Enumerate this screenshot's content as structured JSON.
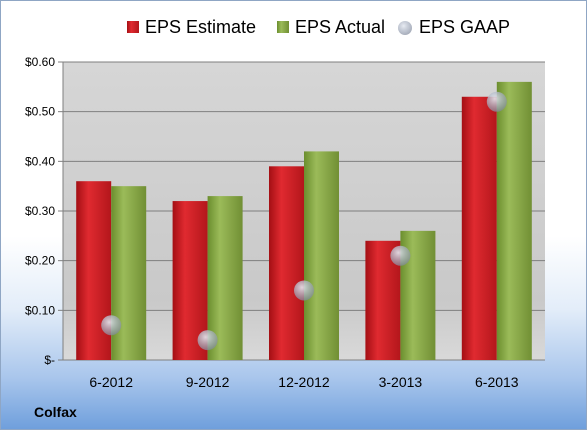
{
  "company": "Colfax",
  "colors": {
    "estimate": "#c8161d",
    "actual": "#7ea13c",
    "gaap": "#b4bccb",
    "plot_background": "#cfcfcf",
    "gridline": "#7f7f7f"
  },
  "chart_data": {
    "type": "bar",
    "categories": [
      "6-2012",
      "9-2012",
      "12-2012",
      "3-2013",
      "6-2013"
    ],
    "series": [
      {
        "name": "EPS Estimate",
        "type": "bar",
        "values": [
          0.36,
          0.32,
          0.39,
          0.24,
          0.53
        ]
      },
      {
        "name": "EPS Actual",
        "type": "bar",
        "values": [
          0.35,
          0.33,
          0.42,
          0.26,
          0.56
        ]
      },
      {
        "name": "EPS GAAP",
        "type": "scatter",
        "values": [
          0.07,
          0.04,
          0.14,
          0.21,
          0.52
        ]
      }
    ],
    "yticks": [
      0,
      0.1,
      0.2,
      0.3,
      0.4,
      0.5,
      0.6
    ],
    "ytick_labels": [
      "$-",
      "$0.10",
      "$0.20",
      "$0.30",
      "$0.40",
      "$0.50",
      "$0.60"
    ],
    "ylim": [
      0,
      0.6
    ],
    "grid": true,
    "legend_position": "top"
  }
}
